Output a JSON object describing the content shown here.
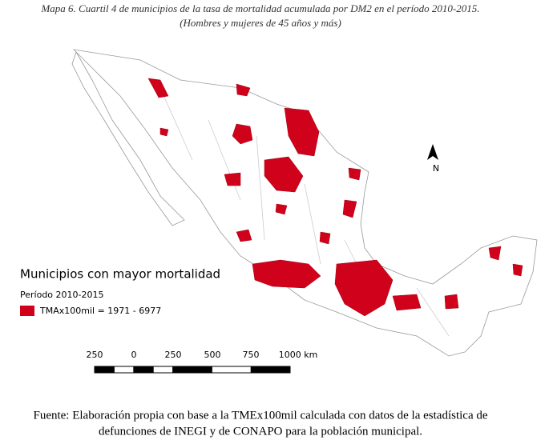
{
  "title": [
    "Mapa 6. Cuartil 4 de municipios de la tasa de mortalidad acumulada por DM2 en el período 2010-2015.",
    "(Hombres y mujeres de 45 años y más)"
  ],
  "legend": {
    "title": "Municipios con mayor mortalidad",
    "period": "Período 2010-2015",
    "item": "TMAx100mil = 1971 - 6977"
  },
  "north": "N",
  "scale_bar": {
    "labels": [
      "250",
      "0",
      "250",
      "500",
      "750",
      "1000 km"
    ]
  },
  "source": [
    "Fuente: Elaboración propia con base a la TMEx100mil calculada con datos de la estadística de",
    "defunciones de INEGI y de CONAPO para la población municipal."
  ]
}
